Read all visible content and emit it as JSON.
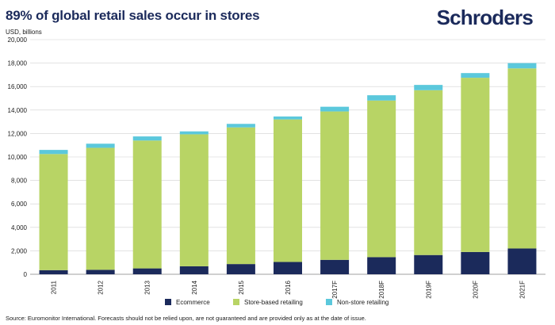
{
  "header": {
    "title": "89% of global retail sales occur in stores",
    "unit_label": "USD, billions",
    "logo_text": "Schroders"
  },
  "footer": {
    "source": "Source: Euromonitor International. Forecasts should not be relied upon, are not guaranteed and are provided only as at the date of issue."
  },
  "colors": {
    "ecommerce": "#1b2a5b",
    "store": "#b8d465",
    "nonstore": "#5bc8dc",
    "grid": "#d0d0d0",
    "axis": "#808080"
  },
  "chart_data": {
    "type": "bar",
    "stacked": true,
    "title": "89% of global retail sales occur in stores",
    "ylabel": "USD, billions",
    "ylim": [
      0,
      20000
    ],
    "yticks": [
      0,
      2000,
      4000,
      6000,
      8000,
      10000,
      12000,
      14000,
      16000,
      18000,
      20000
    ],
    "ytick_labels": [
      "0",
      "2,000",
      "4,000",
      "6,000",
      "8,000",
      "10,000",
      "12,000",
      "14,000",
      "16,000",
      "18,000",
      "20,000"
    ],
    "grid": true,
    "legend_position": "bottom",
    "categories": [
      "2011",
      "2012",
      "2013",
      "2014",
      "2015",
      "2016",
      "2017F",
      "2018F",
      "2019F",
      "2020F",
      "2021F"
    ],
    "series": [
      {
        "name": "Ecommerce",
        "color_key": "ecommerce",
        "values": [
          350,
          380,
          500,
          680,
          870,
          1050,
          1230,
          1460,
          1640,
          1900,
          2200
        ]
      },
      {
        "name": "Store-based retailing",
        "color_key": "store",
        "values": [
          9900,
          10400,
          10900,
          11250,
          11650,
          12150,
          12650,
          13350,
          14050,
          14850,
          15350
        ]
      },
      {
        "name": "Non-store retailing",
        "color_key": "nonstore",
        "values": [
          350,
          350,
          350,
          250,
          300,
          250,
          400,
          450,
          450,
          400,
          450
        ]
      }
    ]
  }
}
